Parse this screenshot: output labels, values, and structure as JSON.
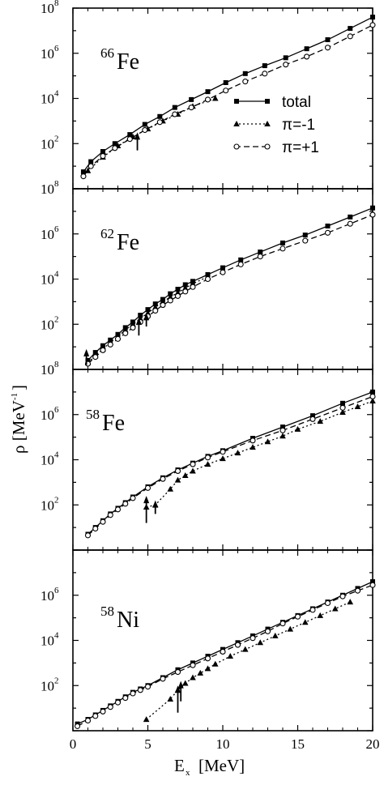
{
  "chart_data": {
    "type": "line",
    "xlabel": "E",
    "xlabel_sub": "x",
    "xlabel_unit": "[MeV]",
    "ylabel": "ρ [MeV",
    "ylabel_sup": "-1",
    "ylabel_close": "]",
    "xlim": [
      0,
      20
    ],
    "x_ticks": [
      0,
      5,
      10,
      15,
      20
    ],
    "y_log": true,
    "y_tick_base": "10",
    "grid": false,
    "legend": {
      "placement": "top-right of first panel",
      "entries": [
        {
          "label": "total",
          "style": "solid",
          "marker": "square"
        },
        {
          "label": "π=-1",
          "style": "dotted",
          "marker": "triangle"
        },
        {
          "label": "π=+1",
          "style": "dashed",
          "marker": "open-circle"
        }
      ]
    },
    "panels": [
      {
        "nucleus_mass": "66",
        "nucleus_element": "Fe",
        "ylim_exp": [
          0,
          8
        ],
        "y_tick_exps": [
          2,
          4,
          6,
          8
        ],
        "series": [
          {
            "name": "total",
            "x": [
              0.7,
              1.2,
              2.0,
              2.8,
              3.8,
              4.8,
              5.8,
              6.8,
              7.9,
              9.0,
              10.2,
              11.5,
              12.8,
              14.2,
              15.6,
              17.0,
              18.5,
              20.0
            ],
            "y_exp": [
              0.75,
              1.2,
              1.65,
              2.0,
              2.4,
              2.85,
              3.2,
              3.6,
              3.95,
              4.3,
              4.7,
              5.1,
              5.45,
              5.8,
              6.2,
              6.6,
              7.1,
              7.6
            ]
          },
          {
            "name": "π=-1",
            "x": [
              1.0,
              2.0,
              3.0,
              4.0,
              5.0,
              6.0,
              7.0,
              8.0,
              9.5
            ],
            "y_exp": [
              0.8,
              1.4,
              1.9,
              2.3,
              2.65,
              3.0,
              3.3,
              3.65,
              4.0
            ]
          },
          {
            "name": "π=+1",
            "x": [
              0.7,
              1.2,
              2.0,
              2.8,
              3.8,
              4.8,
              5.8,
              6.8,
              7.9,
              9.0,
              10.2,
              11.5,
              12.8,
              14.2,
              15.6,
              17.0,
              18.5,
              20.0
            ],
            "y_exp": [
              0.55,
              1.0,
              1.45,
              1.8,
              2.2,
              2.6,
              2.95,
              3.3,
              3.6,
              3.95,
              4.35,
              4.75,
              5.1,
              5.5,
              5.85,
              6.25,
              6.75,
              7.25
            ]
          }
        ],
        "arrows": [
          {
            "x": 4.3,
            "y_exp_top": 2.5,
            "y_exp_bottom": 1.7
          }
        ]
      },
      {
        "nucleus_mass": "62",
        "nucleus_element": "Fe",
        "ylim_exp": [
          0,
          8
        ],
        "y_tick_exps": [
          2,
          4,
          6,
          8
        ],
        "series": [
          {
            "name": "total",
            "x": [
              1.0,
              1.5,
              2.0,
              2.5,
              3.0,
              3.5,
              4.0,
              4.5,
              5.0,
              5.5,
              6.0,
              6.5,
              7.0,
              7.5,
              8.0,
              9.0,
              10.0,
              11.2,
              12.5,
              14.0,
              15.5,
              17.0,
              18.5,
              20.0
            ],
            "y_exp": [
              0.4,
              0.75,
              1.05,
              1.3,
              1.55,
              1.85,
              2.1,
              2.4,
              2.65,
              2.9,
              3.1,
              3.35,
              3.55,
              3.75,
              3.9,
              4.2,
              4.5,
              4.85,
              5.2,
              5.6,
              5.95,
              6.35,
              6.75,
              7.15
            ]
          },
          {
            "name": "π=-1",
            "x": [
              1.0,
              1.5,
              2.0,
              2.5,
              3.0,
              3.5,
              4.0,
              4.5,
              5.0,
              5.5,
              6.0,
              6.5,
              7.0,
              7.5,
              8.0,
              9.0
            ],
            "y_exp": [
              0.3,
              0.6,
              0.9,
              1.2,
              1.45,
              1.75,
              2.0,
              2.25,
              2.5,
              2.75,
              3.0,
              3.2,
              3.4,
              3.6,
              3.8,
              4.1
            ]
          },
          {
            "name": "π=+1",
            "x": [
              1.0,
              1.5,
              2.0,
              2.5,
              3.0,
              3.5,
              4.0,
              4.5,
              5.0,
              5.5,
              6.0,
              6.5,
              7.0,
              7.5,
              8.0,
              9.0,
              10.0,
              11.2,
              12.5,
              14.0,
              15.5,
              17.0,
              18.5,
              20.0
            ],
            "y_exp": [
              0.25,
              0.55,
              0.85,
              1.1,
              1.35,
              1.6,
              1.85,
              2.1,
              2.35,
              2.6,
              2.85,
              3.05,
              3.25,
              3.45,
              3.65,
              4.0,
              4.3,
              4.65,
              5.0,
              5.35,
              5.7,
              6.05,
              6.45,
              6.85
            ]
          }
        ],
        "arrows": [
          {
            "x": 0.9,
            "y_exp_top": 0.9,
            "y_exp_bottom": 0.2
          },
          {
            "x": 4.4,
            "y_exp_top": 2.3,
            "y_exp_bottom": 1.5
          },
          {
            "x": 4.9,
            "y_exp_top": 2.5,
            "y_exp_bottom": 1.9
          }
        ]
      },
      {
        "nucleus_mass": "58",
        "nucleus_element": "Fe",
        "ylim_exp": [
          0,
          8
        ],
        "y_tick_exps": [
          2,
          4,
          6,
          8
        ],
        "series": [
          {
            "name": "total",
            "x": [
              1.0,
              1.5,
              2.0,
              2.5,
              3.0,
              3.5,
              4.0,
              5.0,
              6.0,
              7.0,
              8.0,
              9.0,
              10.0,
              12.0,
              14.0,
              16.0,
              18.0,
              20.0
            ],
            "y_exp": [
              0.7,
              1.0,
              1.3,
              1.6,
              1.85,
              2.1,
              2.35,
              2.8,
              3.2,
              3.55,
              3.85,
              4.15,
              4.4,
              4.95,
              5.45,
              5.95,
              6.5,
              7.0
            ]
          },
          {
            "name": "π=-1",
            "x": [
              4.9,
              5.5,
              6.5,
              7.0,
              7.5,
              8.0,
              9.0,
              10.0,
              11.0,
              12.0,
              13.0,
              14.0,
              15.0,
              16.5,
              18.0,
              19.0,
              20.0
            ],
            "y_exp": [
              1.9,
              2.0,
              2.7,
              3.1,
              3.3,
              3.5,
              3.8,
              4.05,
              4.3,
              4.55,
              4.8,
              5.05,
              5.35,
              5.7,
              6.1,
              6.35,
              6.6
            ]
          },
          {
            "name": "π=+1",
            "x": [
              1.0,
              1.5,
              2.0,
              2.5,
              3.0,
              3.5,
              4.0,
              5.0,
              6.0,
              7.0,
              8.0,
              9.0,
              10.0,
              12.0,
              14.0,
              16.0,
              18.0,
              20.0
            ],
            "y_exp": [
              0.65,
              0.95,
              1.25,
              1.55,
              1.8,
              2.05,
              2.3,
              2.75,
              3.15,
              3.5,
              3.8,
              4.1,
              4.35,
              4.85,
              5.3,
              5.8,
              6.3,
              6.8
            ]
          }
        ],
        "arrows": [
          {
            "x": 4.9,
            "y_exp_top": 2.4,
            "y_exp_bottom": 1.2
          },
          {
            "x": 5.5,
            "y_exp_top": 2.2,
            "y_exp_bottom": 1.6
          }
        ]
      },
      {
        "nucleus_mass": "58",
        "nucleus_element": "Ni",
        "ylim_exp": [
          0,
          8
        ],
        "y_tick_exps": [
          2,
          4,
          6
        ],
        "series": [
          {
            "name": "total",
            "x": [
              0.3,
              1.0,
              1.5,
              2.0,
              2.5,
              3.0,
              3.5,
              4.0,
              4.5,
              5.0,
              6.0,
              7.0,
              8.0,
              9.0,
              10.0,
              11.0,
              12.0,
              13.0,
              14.0,
              15.0,
              16.0,
              17.0,
              18.0,
              19.0,
              20.0
            ],
            "y_exp": [
              0.3,
              0.5,
              0.7,
              0.9,
              1.1,
              1.3,
              1.5,
              1.7,
              1.85,
              2.0,
              2.35,
              2.7,
              3.0,
              3.3,
              3.6,
              3.9,
              4.2,
              4.5,
              4.8,
              5.1,
              5.4,
              5.7,
              6.0,
              6.3,
              6.6
            ]
          },
          {
            "name": "π=-1",
            "x": [
              4.9,
              6.5,
              7.0,
              7.5,
              8.0,
              8.5,
              9.0,
              9.5,
              10.5,
              11.5,
              12.5,
              13.5,
              14.5,
              15.5,
              16.5,
              17.5,
              18.5
            ],
            "y_exp": [
              0.5,
              1.4,
              1.8,
              2.1,
              2.35,
              2.55,
              2.75,
              2.95,
              3.3,
              3.6,
              3.9,
              4.2,
              4.5,
              4.8,
              5.1,
              5.4,
              5.7
            ]
          },
          {
            "name": "π=+1",
            "x": [
              0.3,
              1.0,
              1.5,
              2.0,
              2.5,
              3.0,
              3.5,
              4.0,
              4.5,
              5.0,
              6.0,
              7.0,
              8.0,
              9.0,
              10.0,
              11.0,
              12.0,
              13.0,
              14.0,
              15.0,
              16.0,
              17.0,
              18.0,
              19.0,
              20.0
            ],
            "y_exp": [
              0.2,
              0.45,
              0.65,
              0.85,
              1.05,
              1.25,
              1.45,
              1.65,
              1.8,
              1.95,
              2.3,
              2.6,
              2.9,
              3.2,
              3.5,
              3.8,
              4.1,
              4.4,
              4.75,
              5.05,
              5.35,
              5.65,
              5.95,
              6.2,
              6.45
            ]
          }
        ],
        "arrows": [
          {
            "x": 7.0,
            "y_exp_top": 2.0,
            "y_exp_bottom": 0.8
          },
          {
            "x": 7.2,
            "y_exp_top": 2.2,
            "y_exp_bottom": 1.3
          }
        ]
      }
    ]
  }
}
